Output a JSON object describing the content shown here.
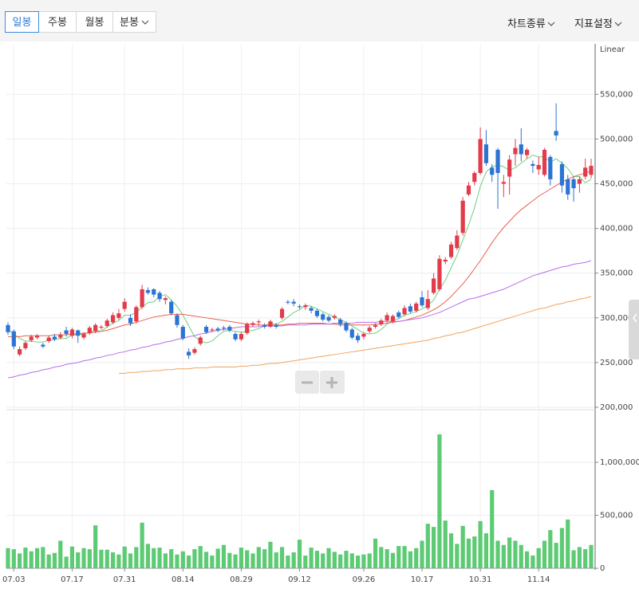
{
  "toolbar": {
    "periods": [
      "일봉",
      "주봉",
      "월봉",
      "분봉"
    ],
    "menus": [
      "차트종류",
      "지표설정"
    ]
  },
  "chart_data": [
    {
      "type": "candlestick",
      "scale_label": "Linear",
      "up_color": "#e23b4a",
      "down_color": "#2b74d3",
      "open": [
        292000,
        285000,
        259000,
        266000,
        275000,
        278000,
        270000,
        274000,
        279000,
        278000,
        286000,
        280000,
        286000,
        278000,
        283000,
        285000,
        289000,
        291000,
        295000,
        300000,
        310000,
        300000,
        296000,
        312000,
        331000,
        332000,
        328000,
        320000,
        318000,
        303000,
        290000,
        262000,
        261000,
        271000,
        290000,
        286000,
        288000,
        289000,
        290000,
        282000,
        276000,
        283000,
        292000,
        295000,
        292000,
        290000,
        292000,
        300000,
        318000,
        318000,
        313000,
        312000,
        311000,
        308000,
        304000,
        301000,
        300000,
        298000,
        294000,
        287000,
        280000,
        279000,
        285000,
        290000,
        293000,
        297000,
        296000,
        306000,
        304000,
        313000,
        308000,
        323000,
        311000,
        328000,
        332000,
        363000,
        368000,
        378000,
        395000,
        438000,
        452000,
        462000,
        494000,
        468000,
        488000,
        450000,
        458000,
        483000,
        494000,
        482000,
        472000,
        466000,
        460000,
        480000,
        509000,
        472000,
        455000,
        455000,
        450000,
        458000,
        460000
      ],
      "high": [
        295000,
        287000,
        268000,
        274000,
        281000,
        282000,
        272000,
        280000,
        282000,
        284000,
        290000,
        289000,
        287000,
        284000,
        291000,
        294000,
        292000,
        299000,
        306000,
        310000,
        322000,
        304000,
        314000,
        337000,
        334000,
        333000,
        330000,
        324000,
        320000,
        305000,
        292000,
        266000,
        267000,
        280000,
        292000,
        289000,
        290000,
        291000,
        292000,
        284000,
        284000,
        295000,
        296000,
        298000,
        294000,
        298000,
        294000,
        312000,
        320000,
        321000,
        315000,
        316000,
        313000,
        310000,
        306000,
        303000,
        304000,
        300000,
        296000,
        289000,
        283000,
        284000,
        291000,
        294000,
        299000,
        306000,
        304000,
        308000,
        314000,
        316000,
        318000,
        330000,
        331000,
        350000,
        370000,
        368000,
        385000,
        398000,
        435000,
        452000,
        464000,
        513000,
        510000,
        472000,
        490000,
        460000,
        482000,
        500000,
        512000,
        490000,
        476000,
        480000,
        490000,
        482000,
        540000,
        475000,
        460000,
        458000,
        458000,
        478000,
        478000
      ],
      "low": [
        281000,
        265000,
        257000,
        264000,
        273000,
        276000,
        266000,
        272000,
        274000,
        276000,
        279000,
        277000,
        272000,
        276000,
        281000,
        283000,
        287000,
        289000,
        293000,
        298000,
        307000,
        291000,
        294000,
        310000,
        326000,
        323000,
        318000,
        315000,
        303000,
        289000,
        275000,
        254000,
        259000,
        269000,
        282000,
        284000,
        284000,
        286000,
        284000,
        274000,
        274000,
        281000,
        290000,
        291000,
        288000,
        289000,
        288000,
        298000,
        315000,
        313000,
        310000,
        309000,
        305000,
        300000,
        296000,
        295000,
        298000,
        290000,
        284000,
        276000,
        272000,
        276000,
        283000,
        288000,
        291000,
        295000,
        294000,
        299000,
        302000,
        305000,
        306000,
        312000,
        309000,
        326000,
        330000,
        360000,
        366000,
        376000,
        392000,
        436000,
        448000,
        460000,
        470000,
        452000,
        422000,
        435000,
        438000,
        470000,
        475000,
        478000,
        462000,
        460000,
        458000,
        448000,
        498000,
        440000,
        432000,
        430000,
        440000,
        455000,
        456000
      ],
      "close": [
        284000,
        268000,
        265000,
        272000,
        279000,
        280000,
        268000,
        278000,
        276000,
        281000,
        282000,
        287000,
        280000,
        282000,
        289000,
        292000,
        290000,
        297000,
        303000,
        305000,
        318000,
        294000,
        312000,
        332000,
        328000,
        326000,
        321000,
        322000,
        305000,
        292000,
        277000,
        258000,
        265000,
        278000,
        284000,
        287000,
        286000,
        288000,
        286000,
        276000,
        282000,
        293000,
        294000,
        296000,
        290000,
        296000,
        290000,
        310000,
        317000,
        316000,
        312000,
        314000,
        308000,
        302000,
        298000,
        297000,
        302000,
        293000,
        286000,
        278000,
        275000,
        282000,
        289000,
        292000,
        297000,
        303000,
        302000,
        301000,
        311000,
        307000,
        316000,
        314000,
        321000,
        344000,
        366000,
        365000,
        382000,
        392000,
        431000,
        448000,
        462000,
        500000,
        473000,
        460000,
        462000,
        452000,
        477000,
        490000,
        483000,
        488000,
        470000,
        471000,
        488000,
        455000,
        504000,
        448000,
        438000,
        445000,
        455000,
        468000,
        470000
      ],
      "series": [
        {
          "color": "#6fcf7e",
          "values": [
            287000,
            282000,
            277000,
            274000,
            274000,
            273000,
            273000,
            275000,
            276000,
            277000,
            277000,
            281000,
            281000,
            282000,
            284000,
            286000,
            285000,
            290000,
            294000,
            297000,
            303000,
            303000,
            306000,
            312000,
            317000,
            318000,
            324000,
            326000,
            320000,
            313000,
            303000,
            291000,
            279000,
            274000,
            272000,
            274000,
            280000,
            285000,
            286000,
            285000,
            284000,
            285000,
            286000,
            288000,
            291000,
            294000,
            293000,
            296000,
            301000,
            306000,
            309000,
            314000,
            313000,
            310000,
            307000,
            304000,
            301000,
            298000,
            295000,
            291000,
            287000,
            283000,
            282000,
            283000,
            287000,
            293000,
            297000,
            299000,
            303000,
            305000,
            307000,
            310000,
            314000,
            320000,
            332000,
            342000,
            356000,
            370000,
            387000,
            404000,
            423000,
            447000,
            463000,
            469000,
            471000,
            469000,
            465000,
            468000,
            473000,
            478000,
            482000,
            480000,
            480000,
            474000,
            478000,
            473000,
            467000,
            458000,
            458000,
            451000,
            455000
          ]
        },
        {
          "color": "#e8614f",
          "values": [
            279000,
            279000,
            279000,
            280000,
            280000,
            280000,
            280000,
            280000,
            281000,
            281000,
            281000,
            282000,
            282000,
            283000,
            283000,
            284000,
            285000,
            286000,
            288000,
            290000,
            292000,
            293000,
            295000,
            297000,
            299000,
            301000,
            302000,
            303000,
            304000,
            304000,
            304000,
            303000,
            302000,
            301000,
            300000,
            299000,
            298000,
            297000,
            296000,
            295000,
            294000,
            293000,
            293000,
            292000,
            292000,
            292000,
            292000,
            292000,
            293000,
            293000,
            294000,
            294000,
            294000,
            294000,
            294000,
            293000,
            293000,
            292000,
            292000,
            292000,
            292000,
            292000,
            292000,
            293000,
            293000,
            294000,
            295000,
            296000,
            297000,
            299000,
            301000,
            303000,
            306000,
            309000,
            313000,
            318000,
            324000,
            331000,
            338000,
            346000,
            355000,
            364000,
            374000,
            384000,
            393000,
            401000,
            408000,
            415000,
            421000,
            426000,
            431000,
            436000,
            440000,
            444000,
            448000,
            452000,
            455000,
            458000,
            460000,
            462000,
            464000
          ]
        },
        {
          "color": "#b86ee8",
          "values": [
            233000,
            234000,
            236000,
            237000,
            239000,
            240000,
            242000,
            243000,
            245000,
            246000,
            248000,
            249000,
            250000,
            252000,
            253000,
            255000,
            256000,
            258000,
            259000,
            261000,
            262000,
            264000,
            265000,
            267000,
            268000,
            270000,
            271000,
            273000,
            274000,
            276000,
            277000,
            279000,
            280000,
            282000,
            283000,
            285000,
            286000,
            287000,
            288000,
            289000,
            290000,
            290000,
            290000,
            290000,
            291000,
            291000,
            291000,
            291000,
            292000,
            292000,
            292000,
            292000,
            293000,
            293000,
            293000,
            293000,
            294000,
            294000,
            294000,
            294000,
            295000,
            295000,
            295000,
            295000,
            296000,
            296000,
            296000,
            296000,
            297000,
            298000,
            299000,
            300000,
            302000,
            304000,
            306000,
            309000,
            312000,
            315000,
            318000,
            321000,
            322000,
            324000,
            326000,
            328000,
            330000,
            332000,
            335000,
            338000,
            341000,
            344000,
            347000,
            349000,
            351000,
            353000,
            355000,
            357000,
            358000,
            360000,
            361000,
            362000,
            364000
          ]
        },
        {
          "color": "#f2a35c",
          "values": [
            null,
            null,
            null,
            null,
            null,
            null,
            null,
            null,
            null,
            null,
            null,
            null,
            null,
            null,
            null,
            null,
            null,
            null,
            null,
            238000,
            238000,
            239000,
            239000,
            240000,
            240000,
            241000,
            241000,
            242000,
            242000,
            243000,
            243000,
            243000,
            244000,
            244000,
            244000,
            245000,
            245000,
            245000,
            245000,
            245000,
            246000,
            246000,
            247000,
            247000,
            248000,
            249000,
            249000,
            250000,
            251000,
            252000,
            253000,
            254000,
            255000,
            256000,
            257000,
            258000,
            259000,
            260000,
            261000,
            262000,
            263000,
            264000,
            265000,
            266000,
            267000,
            268000,
            269000,
            270000,
            271000,
            272000,
            273000,
            274000,
            275000,
            277000,
            278000,
            280000,
            281000,
            283000,
            284000,
            286000,
            288000,
            290000,
            292000,
            294000,
            296000,
            298000,
            300000,
            302000,
            304000,
            306000,
            308000,
            310000,
            311000,
            313000,
            315000,
            316000,
            318000,
            319000,
            321000,
            322000,
            324000
          ]
        }
      ],
      "ylim": [
        200000,
        602000
      ],
      "yticks": [
        {
          "value": 200000,
          "label": "200,000"
        },
        {
          "value": 250000,
          "label": "250,000"
        },
        {
          "value": 300000,
          "label": "300,000"
        },
        {
          "value": 350000,
          "label": "350,000"
        },
        {
          "value": 400000,
          "label": "400,000"
        },
        {
          "value": 450000,
          "label": "450,000"
        },
        {
          "value": 500000,
          "label": "500,000"
        },
        {
          "value": 550000,
          "label": "550,000"
        }
      ],
      "grid": true
    },
    {
      "type": "bar",
      "color": "#5dca74",
      "categories": [
        null,
        "07.03",
        null,
        null,
        null,
        null,
        null,
        null,
        null,
        null,
        null,
        "07.17",
        null,
        null,
        null,
        null,
        null,
        null,
        null,
        null,
        "07.31",
        null,
        null,
        null,
        null,
        null,
        null,
        null,
        null,
        null,
        "08.14",
        null,
        null,
        null,
        null,
        null,
        null,
        null,
        null,
        null,
        "08.29",
        null,
        null,
        null,
        null,
        null,
        null,
        null,
        null,
        null,
        "09.12",
        null,
        null,
        null,
        null,
        null,
        null,
        null,
        null,
        null,
        null,
        "09.26",
        null,
        null,
        null,
        null,
        null,
        null,
        null,
        null,
        null,
        "10.17",
        null,
        null,
        null,
        null,
        null,
        null,
        null,
        null,
        null,
        "10.31",
        null,
        null,
        null,
        null,
        null,
        null,
        null,
        null,
        null,
        "11.14",
        null,
        null,
        null,
        null,
        null,
        null,
        null,
        null,
        null
      ],
      "values": [
        190000,
        180000,
        140000,
        195000,
        160000,
        190000,
        200000,
        130000,
        145000,
        260000,
        110000,
        205000,
        150000,
        190000,
        180000,
        405000,
        175000,
        175000,
        150000,
        130000,
        205000,
        140000,
        200000,
        430000,
        230000,
        190000,
        195000,
        140000,
        180000,
        130000,
        160000,
        120000,
        180000,
        210000,
        155000,
        120000,
        185000,
        220000,
        145000,
        130000,
        195000,
        170000,
        140000,
        200000,
        180000,
        250000,
        150000,
        200000,
        120000,
        150000,
        270000,
        120000,
        195000,
        165000,
        140000,
        190000,
        155000,
        130000,
        165000,
        140000,
        120000,
        130000,
        140000,
        280000,
        200000,
        180000,
        145000,
        210000,
        210000,
        160000,
        190000,
        260000,
        420000,
        390000,
        1263000,
        450000,
        330000,
        230000,
        400000,
        280000,
        300000,
        445000,
        330000,
        737000,
        260000,
        220000,
        290000,
        260000,
        220000,
        160000,
        120000,
        190000,
        260000,
        360000,
        240000,
        380000,
        460000,
        170000,
        200000,
        180000,
        220000
      ],
      "ylim": [
        0,
        1466000
      ],
      "yticks": [
        0,
        {
          "value": 500000,
          "label": "500,000"
        },
        {
          "value": 1000000,
          "label": "1,000,000"
        }
      ],
      "grid": true
    }
  ]
}
